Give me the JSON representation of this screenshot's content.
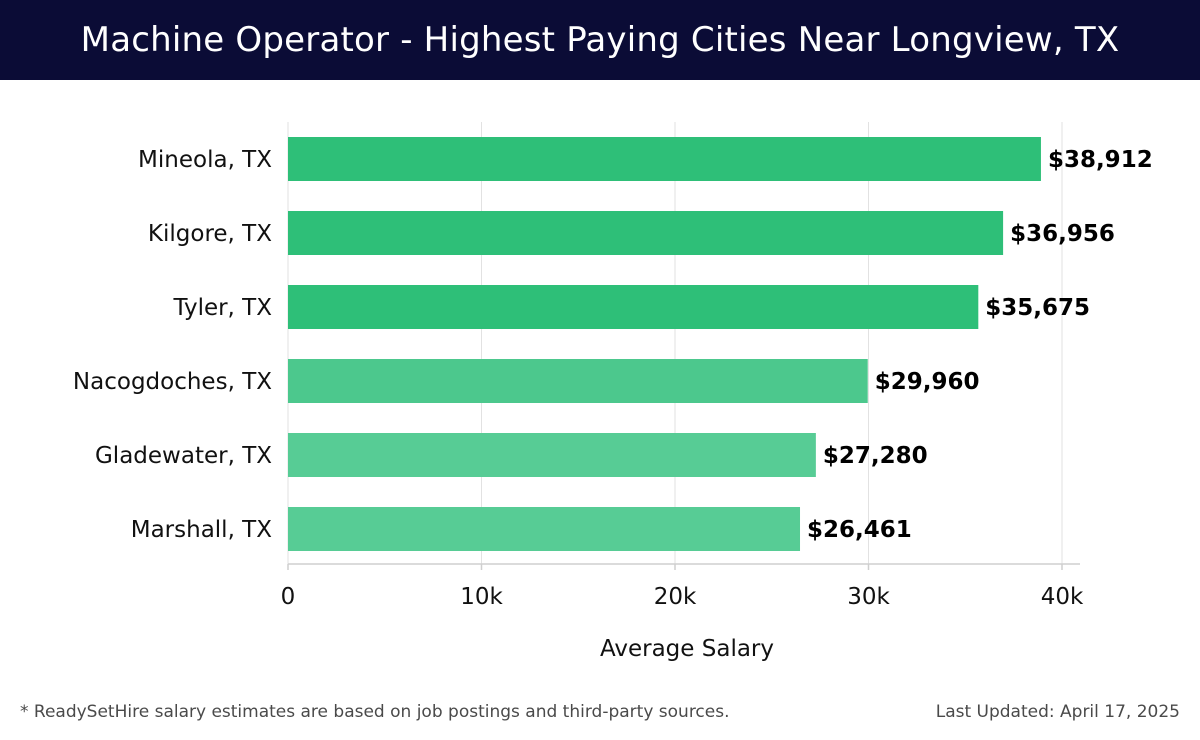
{
  "header": {
    "title": "Machine Operator - Highest Paying Cities Near Longview, TX"
  },
  "chart_data": {
    "type": "bar",
    "orientation": "horizontal",
    "categories": [
      "Mineola, TX",
      "Kilgore, TX",
      "Tyler, TX",
      "Nacogdoches, TX",
      "Gladewater, TX",
      "Marshall, TX"
    ],
    "values": [
      38912,
      36956,
      35675,
      29960,
      27280,
      26461
    ],
    "value_labels": [
      "$38,912",
      "$36,956",
      "$35,675",
      "$29,960",
      "$27,280",
      "$26,461"
    ],
    "bar_colors": [
      "#2ebf78",
      "#2ebf78",
      "#2ebf78",
      "#4cc88d",
      "#57cc95",
      "#57cc95"
    ],
    "xlabel": "Average Salary",
    "ylabel": "",
    "xlim": [
      0,
      40000
    ],
    "xticks": [
      0,
      10000,
      20000,
      30000,
      40000
    ],
    "xtick_labels": [
      "0",
      "10k",
      "20k",
      "30k",
      "40k"
    ],
    "grid": true
  },
  "footer": {
    "note": "* ReadySetHire salary estimates are based on job postings and third-party sources.",
    "updated": "Last Updated: April 17, 2025"
  }
}
